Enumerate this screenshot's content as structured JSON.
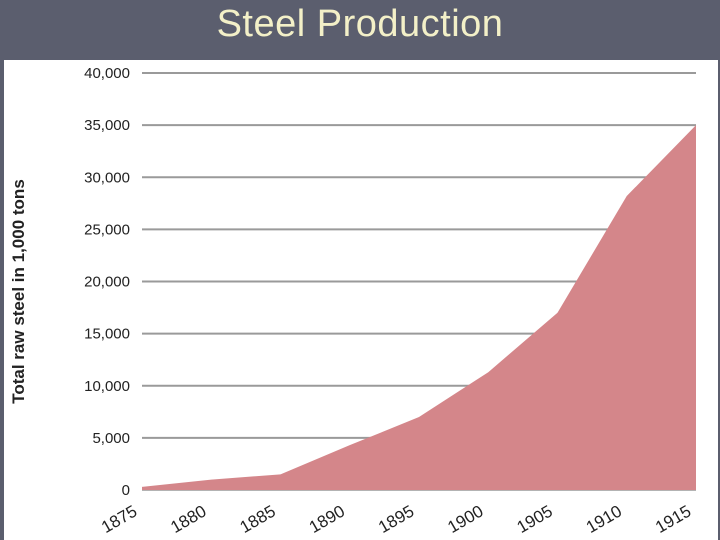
{
  "slide": {
    "title": "Steel Production"
  },
  "chart_data": {
    "type": "area",
    "title": "Steel Production",
    "xlabel": "",
    "ylabel": "Total raw steel in 1,000 tons",
    "ylim": [
      0,
      40000
    ],
    "xlim": [
      1875,
      1915
    ],
    "x_ticks": [
      1875,
      1880,
      1885,
      1890,
      1895,
      1900,
      1905,
      1910,
      1915
    ],
    "y_ticks": [
      0,
      5000,
      10000,
      15000,
      20000,
      25000,
      30000,
      35000,
      40000
    ],
    "y_tick_labels": [
      "0",
      "5,000",
      "10,000",
      "15,000",
      "20,000",
      "25,000",
      "30,000",
      "35,000",
      "40,000"
    ],
    "x_tick_labels": [
      "1875",
      "1880",
      "1885",
      "1890",
      "1895",
      "1900",
      "1905",
      "1910",
      "1915"
    ],
    "grid": true,
    "series": [
      {
        "name": "Total raw steel",
        "color": "#d4868a",
        "x": [
          1875,
          1880,
          1885,
          1890,
          1895,
          1900,
          1905,
          1910,
          1915
        ],
        "values": [
          300,
          1000,
          1500,
          4300,
          7000,
          11300,
          17000,
          28200,
          35000
        ]
      }
    ]
  }
}
